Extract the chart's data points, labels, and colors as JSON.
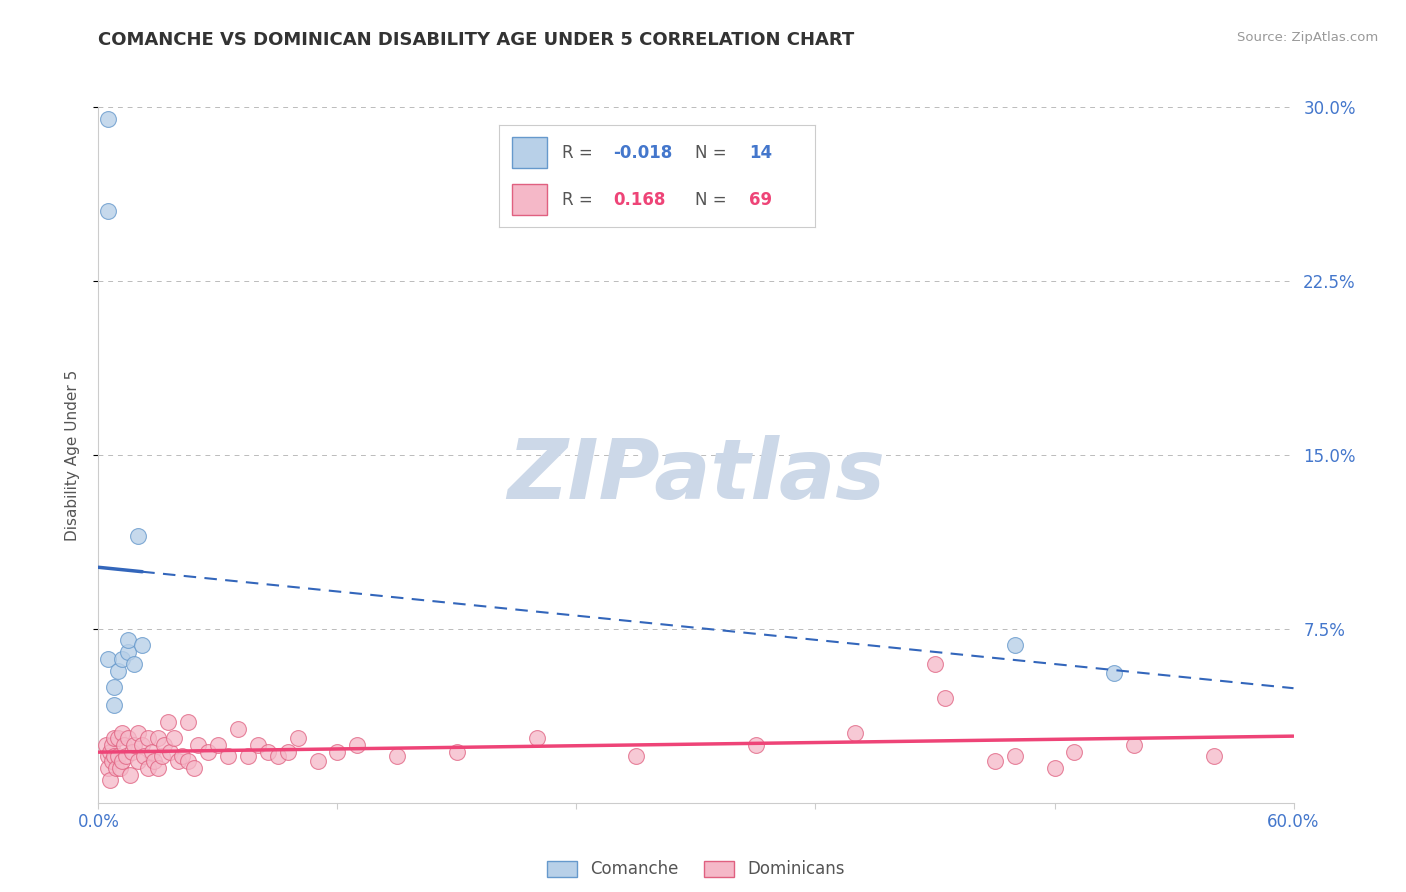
{
  "title": "COMANCHE VS DOMINICAN DISABILITY AGE UNDER 5 CORRELATION CHART",
  "source": "Source: ZipAtlas.com",
  "ylabel": "Disability Age Under 5",
  "xlim": [
    0.0,
    0.6
  ],
  "ylim": [
    0.0,
    0.3
  ],
  "background_color": "#ffffff",
  "comanche_fill": "#b8d0e8",
  "comanche_edge": "#6699cc",
  "dominican_fill": "#f5b8c8",
  "dominican_edge": "#e06080",
  "comanche_line_color": "#3366bb",
  "dominican_line_color": "#ee4477",
  "grid_color": "#bbbbbb",
  "right_tick_color": "#4477cc",
  "r_comanche": "-0.018",
  "n_comanche": "14",
  "r_dominican": "0.168",
  "n_dominican": "69",
  "comanche_points": [
    [
      0.005,
      0.295
    ],
    [
      0.005,
      0.255
    ],
    [
      0.005,
      0.062
    ],
    [
      0.008,
      0.05
    ],
    [
      0.008,
      0.042
    ],
    [
      0.01,
      0.057
    ],
    [
      0.012,
      0.062
    ],
    [
      0.015,
      0.065
    ],
    [
      0.015,
      0.07
    ],
    [
      0.018,
      0.06
    ],
    [
      0.02,
      0.115
    ],
    [
      0.022,
      0.068
    ],
    [
      0.46,
      0.068
    ],
    [
      0.51,
      0.056
    ]
  ],
  "dominican_points": [
    [
      0.004,
      0.025
    ],
    [
      0.005,
      0.02
    ],
    [
      0.005,
      0.015
    ],
    [
      0.006,
      0.022
    ],
    [
      0.006,
      0.01
    ],
    [
      0.007,
      0.025
    ],
    [
      0.007,
      0.018
    ],
    [
      0.008,
      0.028
    ],
    [
      0.008,
      0.02
    ],
    [
      0.009,
      0.015
    ],
    [
      0.01,
      0.028
    ],
    [
      0.01,
      0.02
    ],
    [
      0.011,
      0.015
    ],
    [
      0.012,
      0.03
    ],
    [
      0.012,
      0.018
    ],
    [
      0.013,
      0.025
    ],
    [
      0.014,
      0.02
    ],
    [
      0.015,
      0.028
    ],
    [
      0.016,
      0.012
    ],
    [
      0.017,
      0.022
    ],
    [
      0.018,
      0.025
    ],
    [
      0.02,
      0.03
    ],
    [
      0.02,
      0.018
    ],
    [
      0.022,
      0.025
    ],
    [
      0.023,
      0.02
    ],
    [
      0.025,
      0.028
    ],
    [
      0.025,
      0.015
    ],
    [
      0.027,
      0.022
    ],
    [
      0.028,
      0.018
    ],
    [
      0.03,
      0.028
    ],
    [
      0.03,
      0.015
    ],
    [
      0.032,
      0.02
    ],
    [
      0.033,
      0.025
    ],
    [
      0.035,
      0.035
    ],
    [
      0.036,
      0.022
    ],
    [
      0.038,
      0.028
    ],
    [
      0.04,
      0.018
    ],
    [
      0.042,
      0.02
    ],
    [
      0.045,
      0.035
    ],
    [
      0.045,
      0.018
    ],
    [
      0.048,
      0.015
    ],
    [
      0.05,
      0.025
    ],
    [
      0.055,
      0.022
    ],
    [
      0.06,
      0.025
    ],
    [
      0.065,
      0.02
    ],
    [
      0.07,
      0.032
    ],
    [
      0.075,
      0.02
    ],
    [
      0.08,
      0.025
    ],
    [
      0.085,
      0.022
    ],
    [
      0.09,
      0.02
    ],
    [
      0.095,
      0.022
    ],
    [
      0.1,
      0.028
    ],
    [
      0.11,
      0.018
    ],
    [
      0.12,
      0.022
    ],
    [
      0.13,
      0.025
    ],
    [
      0.15,
      0.02
    ],
    [
      0.18,
      0.022
    ],
    [
      0.22,
      0.028
    ],
    [
      0.27,
      0.02
    ],
    [
      0.33,
      0.025
    ],
    [
      0.38,
      0.03
    ],
    [
      0.42,
      0.06
    ],
    [
      0.425,
      0.045
    ],
    [
      0.45,
      0.018
    ],
    [
      0.46,
      0.02
    ],
    [
      0.48,
      0.015
    ],
    [
      0.49,
      0.022
    ],
    [
      0.52,
      0.025
    ],
    [
      0.56,
      0.02
    ]
  ],
  "watermark_color": "#ccd8e8",
  "legend_text_color": "#4477cc",
  "legend_label_color": "#555555",
  "title_color": "#333333",
  "source_color": "#999999",
  "axis_label_color": "#555555",
  "tick_label_color": "#4477cc"
}
